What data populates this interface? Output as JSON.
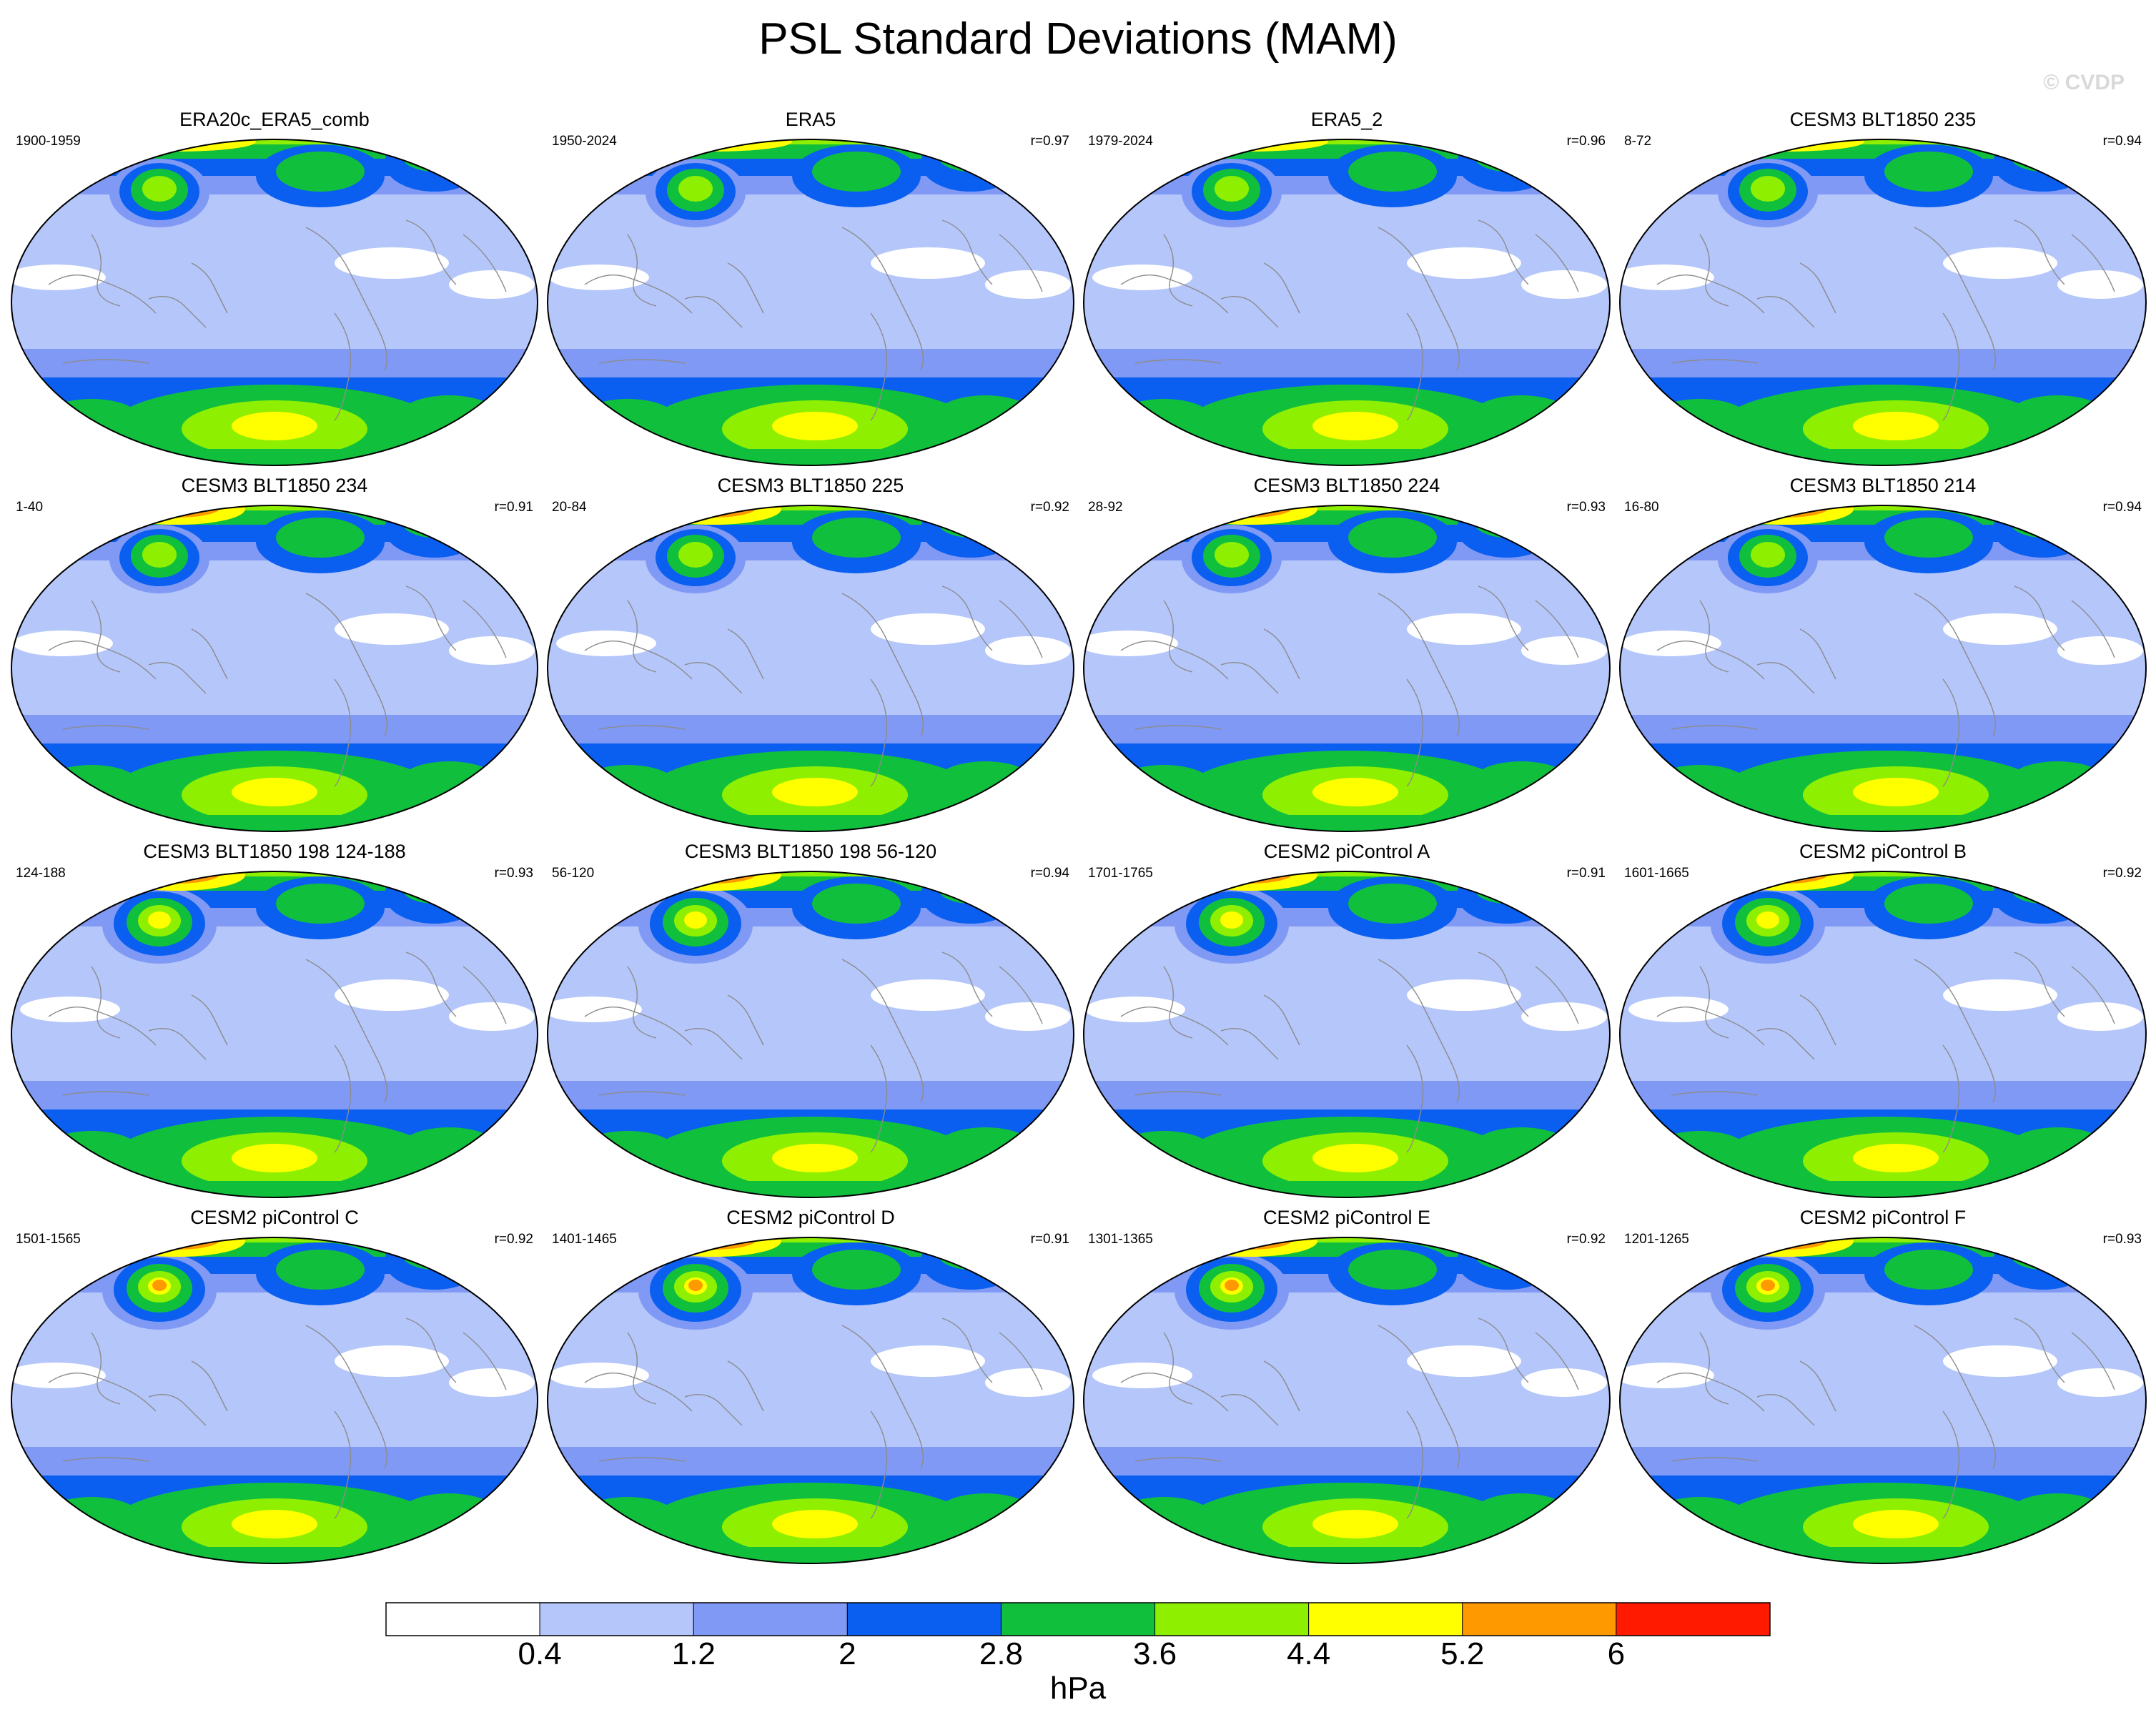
{
  "figure": {
    "title": "PSL Standard Deviations (MAM)",
    "watermark": "© CVDP"
  },
  "colors": {
    "levels": [
      "#ffffff",
      "#b4c6fa",
      "#8099f4",
      "#0a5ff0",
      "#10c03c",
      "#8ef000",
      "#ffff00",
      "#ff9900",
      "#ff1a00"
    ],
    "coast": "#8c8c8c"
  },
  "panels": [
    {
      "title": "ERA20c_ERA5_comb",
      "years": "1900-1959",
      "r": ""
    },
    {
      "title": "ERA5",
      "years": "1950-2024",
      "r": "r=0.97"
    },
    {
      "title": "ERA5_2",
      "years": "1979-2024",
      "r": "r=0.96"
    },
    {
      "title": "CESM3 BLT1850 235",
      "years": "8-72",
      "r": "r=0.94"
    },
    {
      "title": "CESM3 BLT1850 234",
      "years": "1-40",
      "r": "r=0.91"
    },
    {
      "title": "CESM3 BLT1850 225",
      "years": "20-84",
      "r": "r=0.92"
    },
    {
      "title": "CESM3 BLT1850 224",
      "years": "28-92",
      "r": "r=0.93"
    },
    {
      "title": "CESM3 BLT1850 214",
      "years": "16-80",
      "r": "r=0.94"
    },
    {
      "title": "CESM3 BLT1850 198 124-188",
      "years": "124-188",
      "r": "r=0.93"
    },
    {
      "title": "CESM3 BLT1850 198 56-120",
      "years": "56-120",
      "r": "r=0.94"
    },
    {
      "title": "CESM2 piControl A",
      "years": "1701-1765",
      "r": "r=0.91"
    },
    {
      "title": "CESM2 piControl B",
      "years": "1601-1665",
      "r": "r=0.92"
    },
    {
      "title": "CESM2 piControl C",
      "years": "1501-1565",
      "r": "r=0.92"
    },
    {
      "title": "CESM2 piControl D",
      "years": "1401-1465",
      "r": "r=0.91"
    },
    {
      "title": "CESM2 piControl E",
      "years": "1301-1365",
      "r": "r=0.92"
    },
    {
      "title": "CESM2 piControl F",
      "years": "1201-1265",
      "r": "r=0.93"
    }
  ],
  "legend": {
    "labels": [
      "0.4",
      "1.2",
      "2",
      "2.8",
      "3.6",
      "4.4",
      "5.2",
      "6"
    ],
    "units": "hPa"
  }
}
